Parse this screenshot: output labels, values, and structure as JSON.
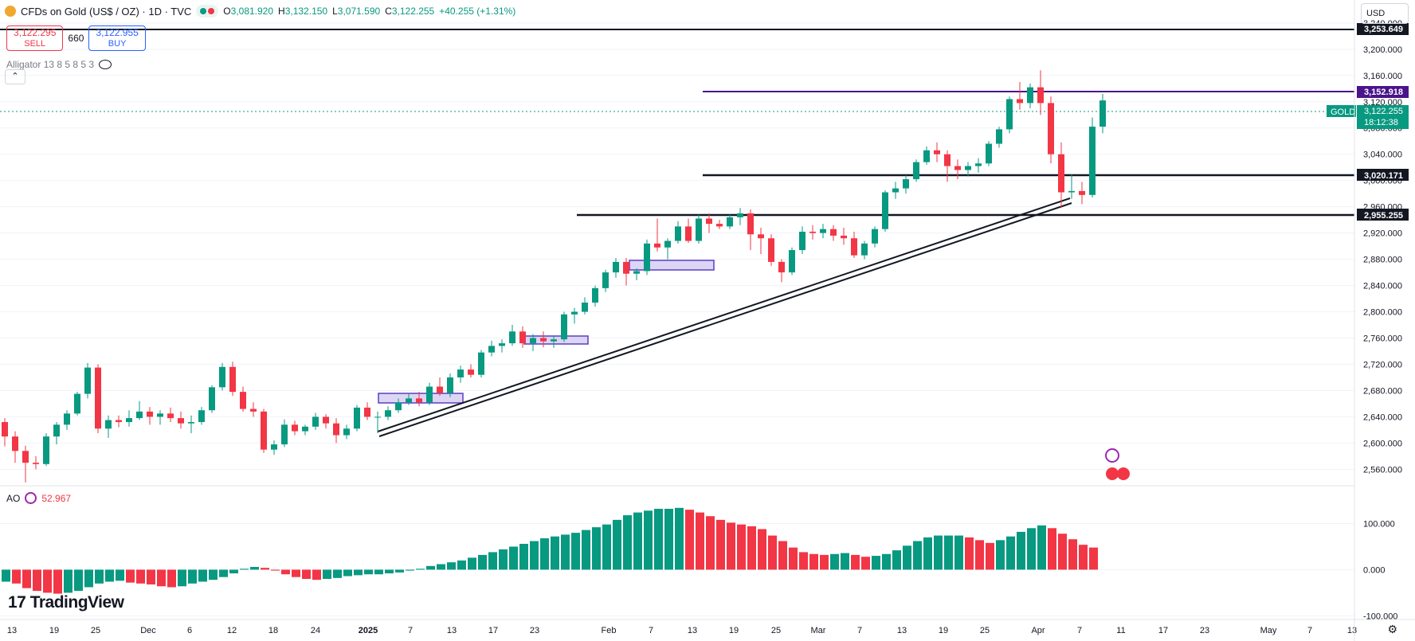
{
  "header": {
    "symbol": "CFDs on Gold (US$ / OZ) · 1D · TVC",
    "open_label": "O",
    "open": "3,081.920",
    "high_label": "H",
    "high": "3,132.150",
    "low_label": "L",
    "low": "3,071.590",
    "close_label": "C",
    "close": "3,122.255",
    "change": "+40.255 (+1.31%)"
  },
  "trade": {
    "sell_price": "3,122.295",
    "sell_label": "SELL",
    "spread": "660",
    "buy_price": "3,122.955",
    "buy_label": "BUY"
  },
  "indicators": {
    "alligator": "Alligator 13 8 5 8 5 3",
    "ao_name": "AO",
    "ao_value": "52.967"
  },
  "currency": "USD",
  "brand": "TradingView",
  "chart_data": {
    "type": "candlestick",
    "x_ticks": [
      "13",
      "19",
      "25",
      "Dec",
      "6",
      "12",
      "18",
      "24",
      "2025",
      "7",
      "13",
      "17",
      "23",
      "Feb",
      "7",
      "13",
      "19",
      "25",
      "Mar",
      "7",
      "13",
      "19",
      "25",
      "Apr",
      "7",
      "11",
      "17",
      "23",
      "May",
      "7",
      "13"
    ],
    "y_ticks": [
      "2,560.000",
      "2,600.000",
      "2,640.000",
      "2,680.000",
      "2,720.000",
      "2,760.000",
      "2,800.000",
      "2,840.000",
      "2,880.000",
      "2,920.000",
      "2,960.000",
      "3,000.000",
      "3,040.000",
      "3,080.000",
      "3,120.000",
      "3,160.000",
      "3,200.000",
      "3,240.000"
    ],
    "ylim": [
      2535,
      3275
    ],
    "ao_ticks": [
      "100.000",
      "0.000",
      "-100.000"
    ],
    "ao_ylim": [
      -108,
      182
    ],
    "candles": [
      [
        2632,
        2638,
        2595,
        2610
      ],
      [
        2610,
        2618,
        2570,
        2588
      ],
      [
        2588,
        2596,
        2540,
        2570
      ],
      [
        2570,
        2580,
        2560,
        2568
      ],
      [
        2568,
        2615,
        2565,
        2610
      ],
      [
        2610,
        2632,
        2598,
        2628
      ],
      [
        2628,
        2650,
        2620,
        2645
      ],
      [
        2645,
        2678,
        2642,
        2675
      ],
      [
        2675,
        2722,
        2668,
        2715
      ],
      [
        2715,
        2720,
        2615,
        2622
      ],
      [
        2622,
        2642,
        2608,
        2635
      ],
      [
        2635,
        2642,
        2624,
        2632
      ],
      [
        2632,
        2650,
        2625,
        2638
      ],
      [
        2638,
        2664,
        2635,
        2648
      ],
      [
        2648,
        2655,
        2628,
        2640
      ],
      [
        2640,
        2650,
        2628,
        2645
      ],
      [
        2645,
        2654,
        2632,
        2638
      ],
      [
        2638,
        2648,
        2622,
        2630
      ],
      [
        2630,
        2642,
        2615,
        2632
      ],
      [
        2632,
        2655,
        2628,
        2650
      ],
      [
        2650,
        2688,
        2646,
        2685
      ],
      [
        2685,
        2722,
        2680,
        2716
      ],
      [
        2716,
        2724,
        2672,
        2678
      ],
      [
        2678,
        2686,
        2648,
        2652
      ],
      [
        2652,
        2662,
        2640,
        2648
      ],
      [
        2648,
        2652,
        2585,
        2590
      ],
      [
        2590,
        2604,
        2582,
        2598
      ],
      [
        2598,
        2636,
        2594,
        2628
      ],
      [
        2628,
        2634,
        2612,
        2618
      ],
      [
        2618,
        2628,
        2612,
        2625
      ],
      [
        2625,
        2646,
        2620,
        2640
      ],
      [
        2640,
        2644,
        2622,
        2630
      ],
      [
        2630,
        2638,
        2600,
        2612
      ],
      [
        2612,
        2628,
        2606,
        2622
      ],
      [
        2622,
        2658,
        2618,
        2654
      ],
      [
        2654,
        2662,
        2635,
        2640
      ],
      [
        2640,
        2648,
        2615,
        2640
      ],
      [
        2640,
        2656,
        2635,
        2650
      ],
      [
        2650,
        2668,
        2646,
        2662
      ],
      [
        2662,
        2676,
        2658,
        2668
      ],
      [
        2668,
        2678,
        2656,
        2662
      ],
      [
        2662,
        2692,
        2658,
        2686
      ],
      [
        2686,
        2700,
        2672,
        2676
      ],
      [
        2676,
        2706,
        2670,
        2700
      ],
      [
        2700,
        2718,
        2692,
        2712
      ],
      [
        2712,
        2720,
        2700,
        2704
      ],
      [
        2704,
        2742,
        2700,
        2738
      ],
      [
        2738,
        2756,
        2732,
        2748
      ],
      [
        2748,
        2758,
        2738,
        2752
      ],
      [
        2752,
        2780,
        2748,
        2770
      ],
      [
        2770,
        2778,
        2745,
        2752
      ],
      [
        2752,
        2766,
        2740,
        2760
      ],
      [
        2760,
        2770,
        2746,
        2755
      ],
      [
        2755,
        2764,
        2745,
        2758
      ],
      [
        2758,
        2800,
        2754,
        2796
      ],
      [
        2796,
        2806,
        2782,
        2800
      ],
      [
        2800,
        2822,
        2796,
        2814
      ],
      [
        2814,
        2840,
        2808,
        2836
      ],
      [
        2836,
        2864,
        2830,
        2860
      ],
      [
        2860,
        2882,
        2852,
        2876
      ],
      [
        2876,
        2882,
        2840,
        2858
      ],
      [
        2858,
        2866,
        2848,
        2862
      ],
      [
        2862,
        2910,
        2856,
        2904
      ],
      [
        2904,
        2942,
        2892,
        2898
      ],
      [
        2898,
        2912,
        2880,
        2908
      ],
      [
        2908,
        2938,
        2904,
        2930
      ],
      [
        2930,
        2942,
        2905,
        2908
      ],
      [
        2908,
        2948,
        2904,
        2942
      ],
      [
        2942,
        2950,
        2920,
        2934
      ],
      [
        2934,
        2940,
        2926,
        2930
      ],
      [
        2930,
        2948,
        2926,
        2944
      ],
      [
        2944,
        2958,
        2932,
        2950
      ],
      [
        2950,
        2956,
        2894,
        2918
      ],
      [
        2918,
        2928,
        2888,
        2912
      ],
      [
        2912,
        2918,
        2870,
        2876
      ],
      [
        2876,
        2880,
        2845,
        2860
      ],
      [
        2860,
        2898,
        2856,
        2894
      ],
      [
        2894,
        2930,
        2888,
        2922
      ],
      [
        2922,
        2932,
        2910,
        2920
      ],
      [
        2920,
        2934,
        2912,
        2926
      ],
      [
        2926,
        2932,
        2908,
        2916
      ],
      [
        2916,
        2928,
        2902,
        2912
      ],
      [
        2912,
        2922,
        2882,
        2886
      ],
      [
        2886,
        2908,
        2880,
        2904
      ],
      [
        2904,
        2930,
        2898,
        2926
      ],
      [
        2926,
        2985,
        2922,
        2982
      ],
      [
        2982,
        2998,
        2972,
        2988
      ],
      [
        2988,
        3008,
        2980,
        3002
      ],
      [
        3002,
        3032,
        2998,
        3028
      ],
      [
        3028,
        3052,
        3024,
        3046
      ],
      [
        3046,
        3058,
        3028,
        3040
      ],
      [
        3040,
        3046,
        2998,
        3022
      ],
      [
        3022,
        3032,
        3002,
        3016
      ],
      [
        3016,
        3028,
        3006,
        3022
      ],
      [
        3022,
        3034,
        3012,
        3026
      ],
      [
        3026,
        3060,
        3022,
        3056
      ],
      [
        3056,
        3082,
        3050,
        3078
      ],
      [
        3078,
        3128,
        3072,
        3124
      ],
      [
        3124,
        3150,
        3108,
        3118
      ],
      [
        3118,
        3148,
        3110,
        3142
      ],
      [
        3142,
        3168,
        3100,
        3118
      ],
      [
        3118,
        3128,
        3026,
        3040
      ],
      [
        3040,
        3058,
        2958,
        2982
      ],
      [
        2982,
        3010,
        2972,
        2984
      ],
      [
        2984,
        2998,
        2964,
        2978
      ],
      [
        2978,
        3096,
        2974,
        3082
      ],
      [
        3082,
        3132,
        3072,
        3122
      ]
    ],
    "ao": [
      -26,
      -30,
      -40,
      -46,
      -50,
      -52,
      -50,
      -46,
      -38,
      -30,
      -26,
      -24,
      -28,
      -30,
      -32,
      -36,
      -38,
      -36,
      -30,
      -26,
      -22,
      -16,
      -8,
      2,
      6,
      4,
      -2,
      -10,
      -16,
      -20,
      -22,
      -20,
      -18,
      -14,
      -12,
      -10,
      -10,
      -8,
      -6,
      -2,
      2,
      8,
      12,
      16,
      20,
      26,
      32,
      38,
      44,
      50,
      56,
      62,
      68,
      72,
      76,
      80,
      86,
      92,
      98,
      108,
      118,
      124,
      128,
      132,
      132,
      134,
      130,
      124,
      116,
      108,
      102,
      98,
      94,
      88,
      74,
      62,
      48,
      38,
      34,
      32,
      34,
      36,
      32,
      28,
      30,
      34,
      42,
      52,
      62,
      70,
      74,
      74,
      74,
      70,
      64,
      58,
      64,
      72,
      82,
      90,
      96,
      90,
      78,
      66,
      54,
      48
    ]
  }
}
